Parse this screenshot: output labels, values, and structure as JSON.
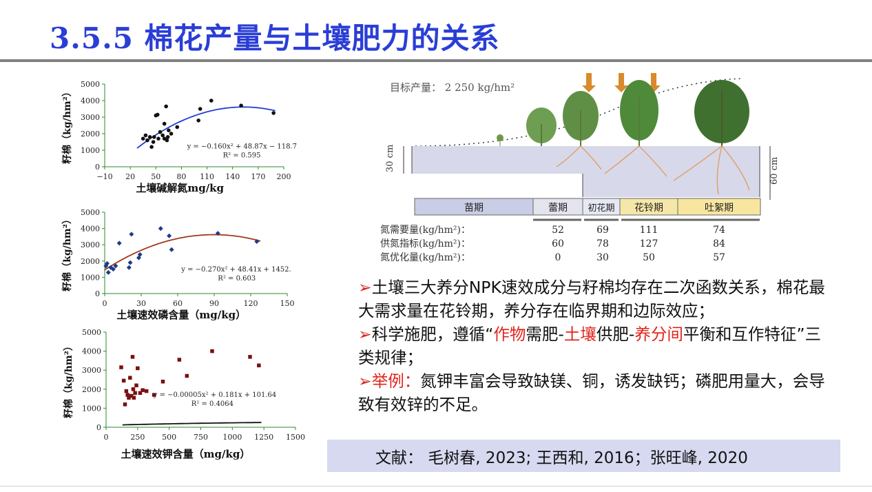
{
  "slide": {
    "title": "3.5.5  棉花产量与土壤肥力的关系",
    "bullets": [
      {
        "arrow": "➢",
        "text": "土壤三大养分NPK速效成分与籽棉均存在二次函数关系，棉花最大需求量在花铃期，养分存在临界期和边际效应；"
      },
      {
        "arrow": "➢",
        "pre": "科学施肥，遵循“",
        "r1": "作物",
        "m1": "需肥-",
        "r2": "土壤",
        "m2": "供肥-",
        "r3": "养分间",
        "post": "平衡和互作特征”三类规律；"
      },
      {
        "arrow": "➢",
        "red": "举例：",
        "text": "氮钾丰富会导致缺镁、铜，诱发缺钙；磷肥用量大，会导致有效锌的不足。"
      }
    ],
    "reference": "文献：  毛树春, 2023; 王西和, 2016；张旺峰, 2020"
  },
  "chart_data": [
    {
      "type": "scatter",
      "ylabel": "籽棉（kg/hm²）",
      "xlabel": "土壤碱解氮mg/kg",
      "xlim": [
        -10,
        200
      ],
      "ylim": [
        0,
        5000
      ],
      "xticks": [
        "−10",
        "20",
        "50",
        "80",
        "110",
        "140",
        "170",
        "200"
      ],
      "yticks": [
        "0",
        "1000",
        "2000",
        "3000",
        "4000",
        "5000"
      ],
      "equation": "y = −0.160x² + 48.87x − 118.7",
      "r2": "R² = 0.595",
      "color": "#111111",
      "curve_color": "#1f3fd0",
      "curve": {
        "a": -0.16,
        "b": 48.87,
        "c": -118.7,
        "x0": 28,
        "x1": 190
      },
      "points": [
        [
          35,
          1700
        ],
        [
          38,
          1900
        ],
        [
          40,
          1600
        ],
        [
          43,
          1800
        ],
        [
          45,
          1200
        ],
        [
          47,
          1500
        ],
        [
          48,
          1800
        ],
        [
          50,
          3100
        ],
        [
          52,
          3150
        ],
        [
          53,
          1700
        ],
        [
          55,
          2100
        ],
        [
          58,
          1900
        ],
        [
          60,
          1700
        ],
        [
          60,
          2600
        ],
        [
          62,
          3650
        ],
        [
          63,
          1600
        ],
        [
          64,
          1800
        ],
        [
          65,
          2200
        ],
        [
          68,
          2000
        ],
        [
          75,
          2400
        ],
        [
          100,
          2800
        ],
        [
          102,
          3500
        ],
        [
          115,
          4000
        ],
        [
          150,
          3700
        ],
        [
          188,
          3250
        ]
      ]
    },
    {
      "type": "scatter",
      "ylabel": "籽棉（kg/hm²）",
      "xlabel": "土壤速效磷含量（mg/kg）",
      "xlim": [
        0,
        150
      ],
      "ylim": [
        0,
        5000
      ],
      "xticks": [
        "0",
        "30",
        "60",
        "90",
        "120",
        "150"
      ],
      "yticks": [
        "0",
        "1000",
        "2000",
        "3000",
        "4000",
        "5000"
      ],
      "equation": "y = −0.270x² + 48.41x + 1452.",
      "r2": "R² = 0.603",
      "color": "#1f3a8a",
      "curve_color": "#a0381c",
      "curve": {
        "a": -0.27,
        "b": 48.41,
        "c": 1452,
        "x0": 0,
        "x1": 128
      },
      "points": [
        [
          1,
          1700
        ],
        [
          2,
          1850
        ],
        [
          3,
          1300
        ],
        [
          5,
          1600
        ],
        [
          7,
          1500
        ],
        [
          9,
          1700
        ],
        [
          12,
          3100
        ],
        [
          20,
          1600
        ],
        [
          21,
          1900
        ],
        [
          22,
          3650
        ],
        [
          28,
          2200
        ],
        [
          29,
          2400
        ],
        [
          46,
          4000
        ],
        [
          53,
          3550
        ],
        [
          55,
          2700
        ],
        [
          93,
          3700
        ],
        [
          125,
          3200
        ]
      ]
    },
    {
      "type": "scatter",
      "ylabel": "籽棉（kg/hm²）",
      "xlabel": "土壤速效钾含量（mg/kg）",
      "xlim": [
        0,
        1500
      ],
      "ylim": [
        0,
        5000
      ],
      "xticks": [
        "0",
        "250",
        "500",
        "750",
        "1000",
        "1250",
        "1500"
      ],
      "yticks": [
        "0",
        "1000",
        "2000",
        "3000",
        "4000",
        "5000"
      ],
      "equation": "y = −0.00005x² + 0.181x + 101.64",
      "r2": "R² = 0.4064",
      "color": "#7a1010",
      "curve_color": "#111111",
      "curve": {
        "a": -5e-05,
        "b": 0.181,
        "c": 101.64,
        "x0": 130,
        "x1": 1230
      },
      "points": [
        [
          120,
          3150
        ],
        [
          140,
          2450
        ],
        [
          150,
          1200
        ],
        [
          160,
          1900
        ],
        [
          170,
          1700
        ],
        [
          180,
          1550
        ],
        [
          190,
          2600
        ],
        [
          200,
          1650
        ],
        [
          210,
          3700
        ],
        [
          215,
          2000
        ],
        [
          220,
          1550
        ],
        [
          230,
          1800
        ],
        [
          240,
          2200
        ],
        [
          250,
          3100
        ],
        [
          270,
          1800
        ],
        [
          290,
          1950
        ],
        [
          320,
          1900
        ],
        [
          380,
          1700
        ],
        [
          450,
          2400
        ],
        [
          580,
          3550
        ],
        [
          640,
          2700
        ],
        [
          840,
          4000
        ],
        [
          1140,
          3700
        ],
        [
          1210,
          3250
        ]
      ]
    }
  ],
  "diagram": {
    "target_label": "目标产量：  2 250 kg/hm²",
    "depth_30": "30 cm",
    "depth_60": "60 cm",
    "stages": [
      "苗期",
      "蕾期",
      "初花期",
      "花铃期",
      "吐絮期"
    ],
    "rows": [
      {
        "label": "氮需要量(kg/hm²)：",
        "values": [
          "52",
          "69",
          "111",
          "74"
        ]
      },
      {
        "label": "供氮指标(kg/hm²)：",
        "values": [
          "60",
          "78",
          "127",
          "84"
        ]
      },
      {
        "label": "氮优化量(kg/hm²)：",
        "values": [
          "0",
          "30",
          "50",
          "57"
        ]
      }
    ],
    "colors": {
      "stage1": "#c9cde6",
      "stage2": "#e4e4ef",
      "stage3": "#e6e8f4",
      "stage4": "#f5e7a8",
      "stage5": "#f8e6a0",
      "soil": "#d7d9ea"
    }
  }
}
